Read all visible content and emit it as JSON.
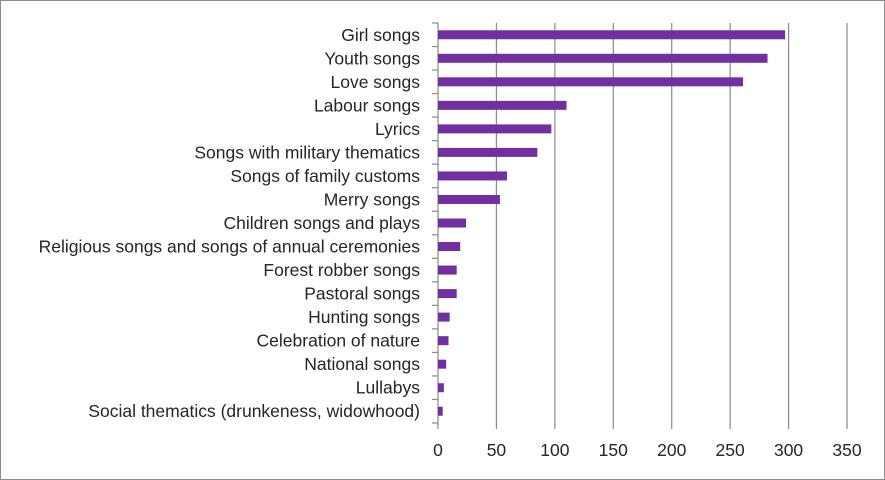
{
  "chart_data": {
    "type": "bar",
    "orientation": "horizontal",
    "title": "",
    "xlabel": "",
    "ylabel": "",
    "xlim": [
      0,
      350
    ],
    "xticks": [
      0,
      50,
      100,
      150,
      200,
      250,
      300,
      350
    ],
    "grid": true,
    "legend": "none",
    "bar_color": "#7030A0",
    "categories": [
      "Girl songs",
      "Youth songs",
      "Love songs",
      "Labour songs",
      "Lyrics",
      "Songs with military thematics",
      "Songs of family customs",
      "Merry songs",
      "Children songs and plays",
      "Religious songs and songs of annual ceremonies",
      "Forest robber songs",
      "Pastoral songs",
      "Hunting songs",
      "Celebration of nature",
      "National songs",
      "Lullabys",
      "Social thematics (drunkeness, widowhood)"
    ],
    "values": [
      297,
      282,
      261,
      110,
      97,
      85,
      59,
      53,
      24,
      19,
      16,
      16,
      10,
      9,
      7,
      5,
      4
    ]
  }
}
